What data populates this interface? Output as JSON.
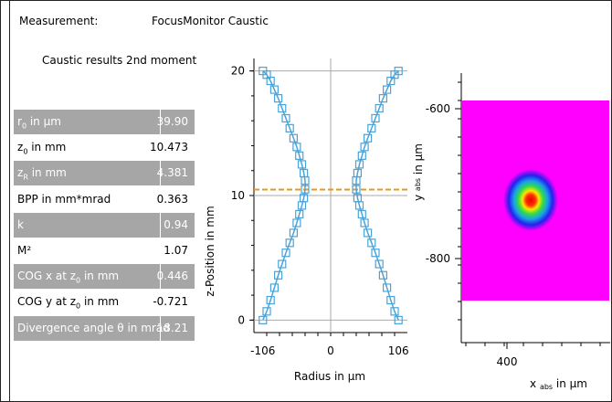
{
  "header": {
    "measurement_label": "Measurement:",
    "measurement_value": "FocusMonitor Caustic",
    "subtitle": "Caustic results 2nd moment"
  },
  "results": [
    {
      "label_main": "r",
      "label_sub": "0",
      "label_rest": " in µm",
      "value": "39.90",
      "shaded": true
    },
    {
      "label_main": "z",
      "label_sub": "0",
      "label_rest": " in mm",
      "value": "10.473",
      "shaded": false
    },
    {
      "label_main": "z",
      "label_sub": "R",
      "label_rest": " in mm",
      "value": "4.381",
      "shaded": true
    },
    {
      "label_main": "BPP in mm*mrad",
      "label_sub": "",
      "label_rest": "",
      "value": "0.363",
      "shaded": false
    },
    {
      "label_main": "k",
      "label_sub": "",
      "label_rest": "",
      "value": "0.94",
      "shaded": true
    },
    {
      "label_main": "M²",
      "label_sub": "",
      "label_rest": "",
      "value": "1.07",
      "shaded": false
    },
    {
      "label_main": "COG x at z",
      "label_sub": "0",
      "label_rest": " in mm",
      "value": "0.446",
      "shaded": true
    },
    {
      "label_main": "COG y at z",
      "label_sub": "0",
      "label_rest": " in mm",
      "value": "-0.721",
      "shaded": false
    },
    {
      "label_main": "Divergence angle θ in mrad",
      "label_sub": "",
      "label_rest": "",
      "value": "18.21",
      "shaded": true
    }
  ],
  "chart_data": [
    {
      "type": "scatter",
      "xlabel": "Radius in µm",
      "ylabel": "z-Position in mm",
      "xlim": [
        -120,
        120
      ],
      "ylim": [
        -1,
        21
      ],
      "x_ticks": [
        -106,
        0,
        106
      ],
      "x_tick_labels": [
        "-106",
        "0",
        "106"
      ],
      "y_ticks": [
        0,
        10,
        20
      ],
      "y_tick_labels": [
        "0",
        "10",
        "20"
      ],
      "focus_line_z": 10.473,
      "focus_line_color": "#e8961e",
      "marker_color": "#4aa3d8",
      "series": [
        {
          "x": [
            -106,
            -100,
            -94,
            -88,
            -82,
            -76,
            -70,
            -64,
            -58,
            -53,
            -49,
            -45,
            -42,
            -40,
            -40,
            -42,
            -45,
            -49,
            -53,
            -58,
            -64,
            -70,
            -76,
            -82,
            -88,
            -94,
            -100,
            -106
          ],
          "y": [
            0,
            0.7,
            1.6,
            2.6,
            3.6,
            4.5,
            5.4,
            6.2,
            7.0,
            7.8,
            8.5,
            9.2,
            9.8,
            10.5,
            11.2,
            11.8,
            12.5,
            13.2,
            13.9,
            14.6,
            15.4,
            16.2,
            17.0,
            17.8,
            18.5,
            19.2,
            19.7,
            20
          ]
        },
        {
          "x": [
            106,
            100,
            94,
            88,
            82,
            76,
            70,
            64,
            58,
            53,
            49,
            45,
            42,
            40,
            40,
            42,
            45,
            49,
            53,
            58,
            64,
            70,
            76,
            82,
            88,
            94,
            100,
            106
          ],
          "y": [
            0,
            0.7,
            1.6,
            2.6,
            3.6,
            4.5,
            5.4,
            6.2,
            7.0,
            7.8,
            8.5,
            9.2,
            9.8,
            10.5,
            11.2,
            11.8,
            12.5,
            13.2,
            13.9,
            14.6,
            15.4,
            16.2,
            17.0,
            17.8,
            18.5,
            19.2,
            19.7,
            20
          ]
        }
      ]
    },
    {
      "type": "heatmap",
      "xlabel": "x abs in µm",
      "ylabel": "y abs in µm",
      "x_ticks": [
        400
      ],
      "x_tick_labels": [
        "400"
      ],
      "y_ticks": [
        -600,
        -800
      ],
      "y_tick_labels": [
        "-600",
        "-800"
      ],
      "background_color": "#ff00ff",
      "beam_center": [
        446,
        -721
      ]
    }
  ]
}
